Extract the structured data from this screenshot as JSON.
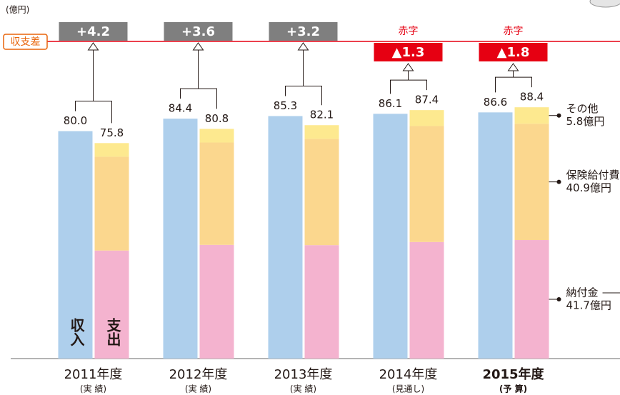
{
  "chart_data": {
    "type": "bar",
    "unit_label": "(億円)",
    "categories": [
      "2011年度",
      "2012年度",
      "2013年度",
      "2014年度",
      "2015年度"
    ],
    "category_notes": [
      "(実 績)",
      "(実 績)",
      "(実 績)",
      "(見通し)",
      "(予 算)"
    ],
    "highlight_category": 4,
    "ylim": [
      0,
      100
    ],
    "income": {
      "name": "収入",
      "color": "#aecfec",
      "values": [
        80.0,
        84.4,
        85.3,
        86.1,
        86.6
      ],
      "value_labels": [
        "80.0",
        "84.4",
        "85.3",
        "86.1",
        "86.6"
      ]
    },
    "expenditure": {
      "name": "支出",
      "totals": [
        75.8,
        80.8,
        82.1,
        87.4,
        88.4
      ],
      "series": [
        {
          "name": "納付金",
          "color": "#f4b3cf",
          "values": [
            38.0,
            40.0,
            39.9,
            41.0,
            41.7
          ],
          "value_labels": [
            null,
            null,
            null,
            null,
            "41.7億円"
          ]
        },
        {
          "name": "保険給付費",
          "color": "#fbd78e",
          "values": [
            33.0,
            36.0,
            37.4,
            40.8,
            40.9
          ],
          "value_labels": [
            null,
            null,
            null,
            null,
            "40.9億円"
          ]
        },
        {
          "name": "その他",
          "color": "#fde98f",
          "values": [
            4.8,
            4.8,
            4.8,
            5.6,
            5.8
          ],
          "value_labels": [
            null,
            null,
            null,
            null,
            "5.8億円"
          ]
        }
      ]
    },
    "balance": {
      "label": "収支差",
      "values": [
        4.2,
        3.6,
        3.2,
        -1.3,
        -1.8
      ],
      "value_labels": [
        "+4.2",
        "+3.6",
        "+3.2",
        "▲1.3",
        "▲1.8"
      ],
      "deficit_label": "赤字",
      "color": "#e60012",
      "surplus_color": "#7f7f7f"
    }
  }
}
